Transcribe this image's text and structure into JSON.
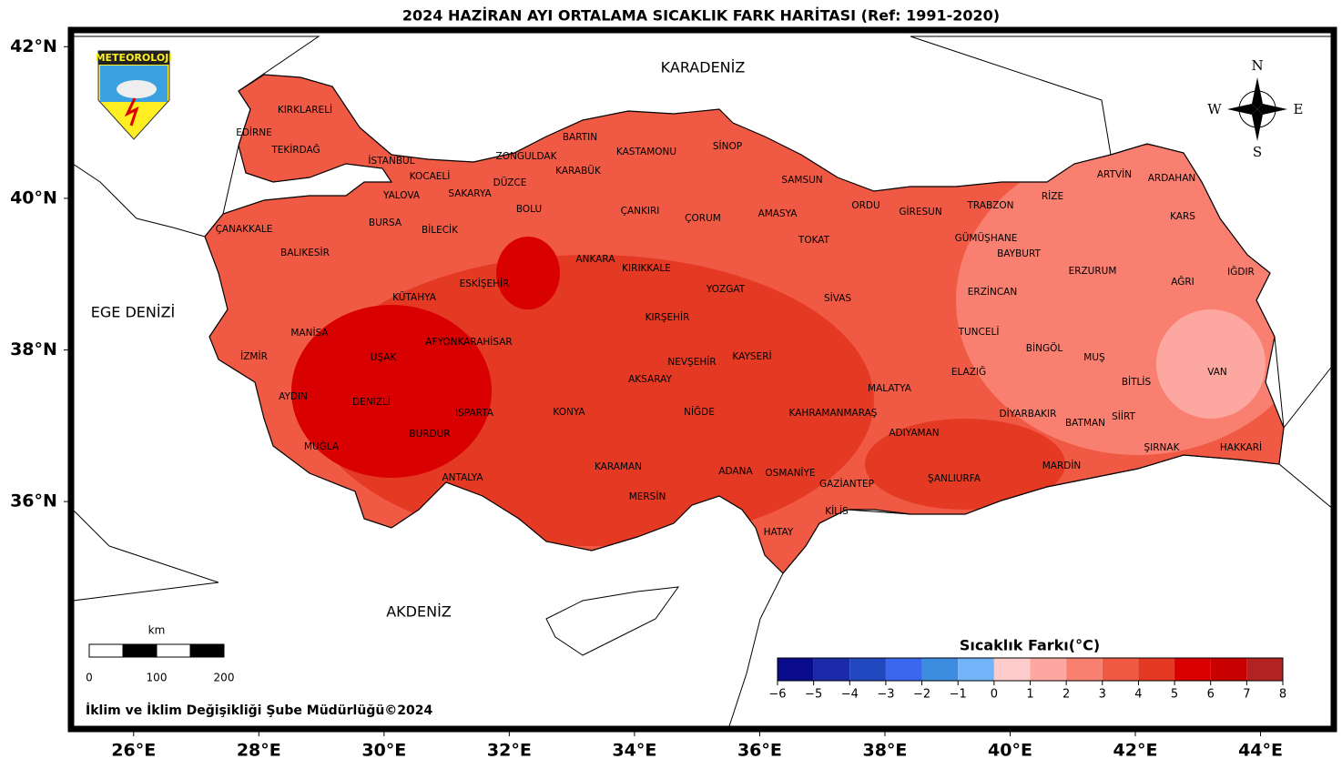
{
  "title": "2024 HAZİRAN AYI ORTALAMA SICAKLIK FARK HARİTASI (Ref: 1991-2020)",
  "logo": "METEOROLOJİ",
  "compass": [
    "N",
    "S",
    "W",
    "E"
  ],
  "map": {
    "xlim": [
      25,
      45.17
    ],
    "ylim": [
      33,
      42.22
    ],
    "xticks": [
      {
        "value": 26,
        "label": "26°E"
      },
      {
        "value": 28,
        "label": "28°E"
      },
      {
        "value": 30,
        "label": "30°E"
      },
      {
        "value": 32,
        "label": "32°E"
      },
      {
        "value": 34,
        "label": "34°E"
      },
      {
        "value": 36,
        "label": "36°E"
      },
      {
        "value": 38,
        "label": "38°E"
      },
      {
        "value": 40,
        "label": "40°E"
      },
      {
        "value": 42,
        "label": "42°E"
      },
      {
        "value": 44,
        "label": "44°E"
      }
    ],
    "yticks": [
      {
        "value": 36,
        "label": "36°N"
      },
      {
        "value": 38,
        "label": "38°N"
      },
      {
        "value": 40,
        "label": "40°N"
      },
      {
        "value": 42,
        "label": "42°N"
      }
    ]
  },
  "seas": [
    "KARADENİZ",
    "EGE DENİZİ",
    "AKDENİZ"
  ],
  "provinces": [
    "KIRKLARELİ",
    "EDİRNE",
    "TEKİRDAĞ",
    "İSTANBUL",
    "KOCAELİ",
    "YALOVA",
    "SAKARYA",
    "DÜZCE",
    "ZONGULDAK",
    "BARTIN",
    "KARABÜK",
    "KASTAMONU",
    "SİNOP",
    "SAMSUN",
    "ÇANAKKALE",
    "BURSA",
    "BİLECİK",
    "BOLU",
    "ÇANKIRI",
    "ÇORUM",
    "AMASYA",
    "TOKAT",
    "ORDU",
    "GİRESUN",
    "TRABZON",
    "RİZE",
    "ARTVİN",
    "ARDAHAN",
    "KARS",
    "GÜMÜŞHANE",
    "BAYBURT",
    "ERZURUM",
    "IĞDIR",
    "AĞRI",
    "ERZİNCAN",
    "SİVAS",
    "YOZGAT",
    "KIRIKKALE",
    "ANKARA",
    "ESKİŞEHİR",
    "KÜTAHYA",
    "BALIKESİR",
    "MANİSA",
    "İZMİR",
    "UŞAK",
    "AFYONKARAHİSAR",
    "KIRŞEHİR",
    "NEVŞEHİR",
    "KAYSERİ",
    "AKSARAY",
    "TUNCELİ",
    "BİNGÖL",
    "MUŞ",
    "ELAZIĞ",
    "MALATYA",
    "BİTLİS",
    "VAN",
    "AYDIN",
    "DENİZLİ",
    "ISPARTA",
    "KONYA",
    "NİĞDE",
    "KAHRAMANMARAŞ",
    "DİYARBAKIR",
    "SİİRT",
    "BATMAN",
    "ADIYAMAN",
    "BURDUR",
    "MUĞLA",
    "ŞIRNAK",
    "HAKKARİ",
    "KARAMAN",
    "ADANA",
    "OSMANİYE",
    "MARDİN",
    "ŞANLIURFA",
    "GAZİANTEP",
    "ANTALYA",
    "MERSİN",
    "KİLİS",
    "HATAY"
  ],
  "colorbar": {
    "title": "Sıcaklık Farkı(°C)",
    "colors": [
      "#0a0a8c",
      "#1a2aa8",
      "#2248c0",
      "#3a66f0",
      "#3c8ce0",
      "#72b4f8",
      "#ffcccc",
      "#fca8a0",
      "#f98070",
      "#f05a44",
      "#e43a24",
      "#d80000",
      "#c80000",
      "#b22222"
    ],
    "ticks": [
      {
        "value": -6,
        "label": "−6"
      },
      {
        "value": -5,
        "label": "−5"
      },
      {
        "value": -4,
        "label": "−4"
      },
      {
        "value": -3,
        "label": "−3"
      },
      {
        "value": -2,
        "label": "−2"
      },
      {
        "value": -1,
        "label": "−1"
      },
      0,
      1,
      2,
      3,
      4,
      5,
      6,
      7,
      8
    ]
  },
  "scale_bar": {
    "unit": "km",
    "ticks": [
      0,
      100,
      200
    ]
  },
  "footer": "İklim ve İklim Değişikliği Şube Müdürlüğü©2024"
}
